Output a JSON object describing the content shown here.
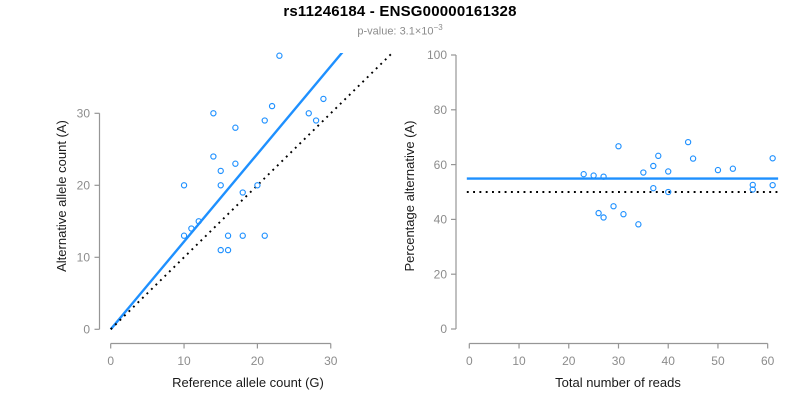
{
  "header": {
    "title": "rs11246184 - ENSG00000161328",
    "pvalue_label": "p-value: ",
    "pvalue_base": "3.1×10",
    "pvalue_exponent": "−3"
  },
  "colors": {
    "accent_blue": "#1E90FF",
    "line_black": "#000000",
    "axis_gray": "#969696",
    "tick_label_gray": "#8c8c8c",
    "axis_title_dark": "#1a1a1a",
    "subtitle_gray": "#8c8c8c",
    "background": "#ffffff"
  },
  "chart_data": [
    {
      "type": "scatter",
      "panel": "left",
      "xlabel": "Reference allele count (G)",
      "ylabel": "Alternative allele count (A)",
      "xticks": [
        0,
        10,
        20,
        30
      ],
      "yticks": [
        0,
        10,
        20,
        30
      ],
      "xlim": [
        0,
        31
      ],
      "ylim": [
        0,
        38.5
      ],
      "grid": false,
      "points": [
        [
          10,
          13
        ],
        [
          10,
          20
        ],
        [
          11,
          14
        ],
        [
          12,
          15
        ],
        [
          14,
          24
        ],
        [
          14,
          30
        ],
        [
          15,
          11
        ],
        [
          15,
          20
        ],
        [
          15,
          22
        ],
        [
          16,
          11
        ],
        [
          16,
          13
        ],
        [
          17,
          23
        ],
        [
          17,
          28
        ],
        [
          18,
          13
        ],
        [
          18,
          19
        ],
        [
          20,
          20
        ],
        [
          21,
          13
        ],
        [
          21,
          29
        ],
        [
          22,
          31
        ],
        [
          23,
          38
        ],
        [
          27,
          30
        ],
        [
          28,
          29
        ],
        [
          29,
          32
        ]
      ],
      "lines": [
        {
          "name": "fit-line",
          "kind": "slope",
          "slope": 1.218,
          "intercept": 0,
          "style": "solid",
          "color_ref": "accent_blue"
        },
        {
          "name": "identity-line",
          "kind": "slope",
          "slope": 1,
          "intercept": 0,
          "style": "dotted",
          "color_ref": "line_black"
        }
      ]
    },
    {
      "type": "scatter",
      "panel": "right",
      "xlabel": "Total number of reads",
      "ylabel": "Percentage alternative (A)",
      "xticks": [
        0,
        10,
        20,
        30,
        40,
        50,
        60
      ],
      "yticks": [
        0,
        20,
        40,
        60,
        80,
        100
      ],
      "xlim": [
        0,
        61
      ],
      "ylim": [
        0,
        100
      ],
      "grid": false,
      "points": [
        [
          23,
          56.5
        ],
        [
          25,
          56
        ],
        [
          26,
          42.3
        ],
        [
          27,
          40.7
        ],
        [
          27,
          55.6
        ],
        [
          29,
          44.8
        ],
        [
          30,
          66.7
        ],
        [
          31,
          41.9
        ],
        [
          34,
          38.2
        ],
        [
          35,
          57.1
        ],
        [
          37,
          51.4
        ],
        [
          37,
          59.5
        ],
        [
          38,
          63.2
        ],
        [
          40,
          50
        ],
        [
          40,
          57.5
        ],
        [
          44,
          68.2
        ],
        [
          45,
          62.2
        ],
        [
          50,
          58
        ],
        [
          53,
          58.5
        ],
        [
          57,
          50.9
        ],
        [
          57,
          52.6
        ],
        [
          61,
          52.5
        ],
        [
          61,
          62.3
        ]
      ],
      "lines": [
        {
          "name": "mean-percentage-line",
          "kind": "horizontal",
          "y": 54.9,
          "style": "solid",
          "color_ref": "accent_blue"
        },
        {
          "name": "null-50-percent-line",
          "kind": "horizontal",
          "y": 50,
          "style": "dotted",
          "color_ref": "line_black"
        }
      ]
    }
  ]
}
